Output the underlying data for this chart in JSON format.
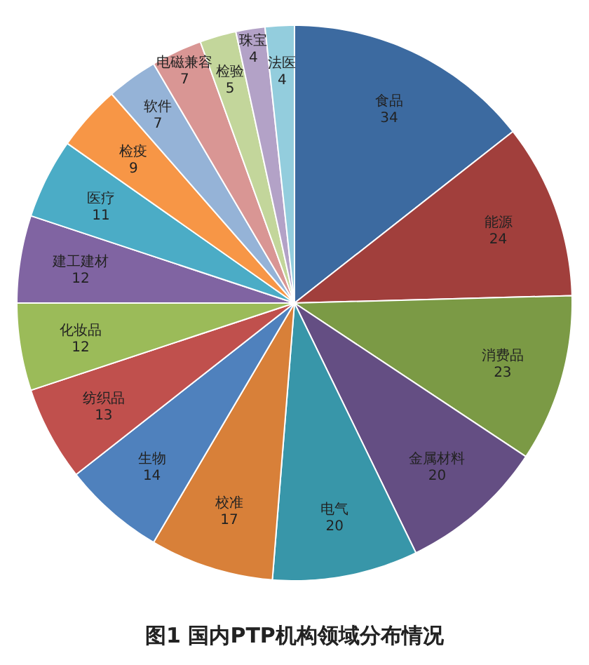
{
  "chart_data": {
    "type": "pie",
    "title": "图1 国内PTP机构领域分布情况",
    "categories": [
      "食品",
      "能源",
      "消费品",
      "金属材料",
      "电气",
      "校准",
      "生物",
      "纺织品",
      "化妆品",
      "建工建材",
      "医疗",
      "检疫",
      "软件",
      "电磁兼容",
      "检验",
      "珠宝",
      "法医"
    ],
    "values": [
      34,
      24,
      23,
      20,
      20,
      17,
      14,
      13,
      12,
      12,
      11,
      9,
      7,
      7,
      5,
      4,
      4
    ],
    "colors": [
      "#3c6aa0",
      "#a13f3c",
      "#7b9a45",
      "#644e83",
      "#3896a9",
      "#d88039",
      "#4f81bd",
      "#c0504d",
      "#9bbb59",
      "#8064a2",
      "#4bacc6",
      "#f79646",
      "#95b3d7",
      "#d99694",
      "#c3d69b",
      "#b3a2c7",
      "#93cddd"
    ],
    "data_labels": true
  }
}
